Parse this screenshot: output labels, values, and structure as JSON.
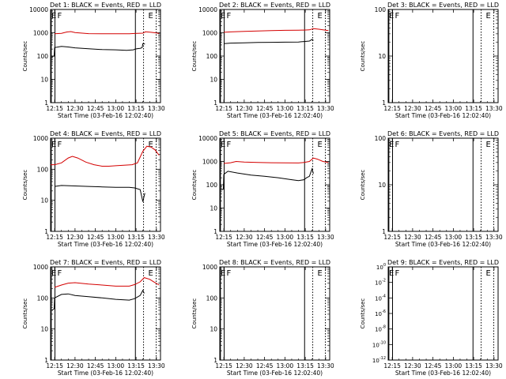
{
  "figure": {
    "xlabel": "Start Time (03-Feb-16 12:02:40)",
    "ylabel": "Counts/sec",
    "xticks": [
      "12:15",
      "12:30",
      "12:45",
      "13:00",
      "13:15",
      "13:30"
    ],
    "series_colors": {
      "events": "#000000",
      "lld": "#d40000"
    }
  },
  "chart_data": [
    {
      "type": "line",
      "title": "Det 1: BLACK = Events, RED = LLD",
      "xlabel": "Start Time (03-Feb-16 12:02:40)",
      "ylabel": "Counts/sec",
      "yscale": "log",
      "ylim": [
        1,
        10000
      ],
      "yticks": [
        "1",
        "10",
        "100",
        "1000",
        "10000"
      ],
      "xlim_minutes": [
        12,
        93
      ],
      "markers": [
        {
          "label": "E",
          "x_minutes": 12.5,
          "style": "solid"
        },
        {
          "label": "F",
          "x_minutes": 15.2,
          "style": "solid"
        },
        {
          "label": "",
          "x_minutes": 74.5,
          "style": "solid"
        },
        {
          "label": "",
          "x_minutes": 80.5,
          "style": "dotted"
        },
        {
          "label": "E",
          "x_minutes": 89.8,
          "style": "dotted"
        }
      ],
      "series": [
        {
          "key": "events",
          "points": [
            [
              13,
              95
            ],
            [
              14.6,
              100
            ],
            [
              15,
              230
            ],
            [
              20,
              260
            ],
            [
              25,
              245
            ],
            [
              30,
              225
            ],
            [
              40,
              205
            ],
            [
              50,
              190
            ],
            [
              60,
              185
            ],
            [
              68,
              175
            ],
            [
              73,
              185
            ],
            [
              74.4,
              200
            ],
            [
              76.5,
              210
            ],
            [
              78,
              215
            ],
            [
              79.5,
              230
            ],
            [
              80,
              340
            ],
            [
              81.5,
              330
            ]
          ]
        },
        {
          "key": "lld",
          "points": [
            [
              15,
              900
            ],
            [
              20,
              950
            ],
            [
              24,
              1080
            ],
            [
              27,
              1120
            ],
            [
              30,
              1020
            ],
            [
              40,
              920
            ],
            [
              50,
              900
            ],
            [
              60,
              900
            ],
            [
              70,
              900
            ],
            [
              74,
              930
            ],
            [
              76,
              940
            ],
            [
              80,
              960
            ],
            [
              82,
              1100
            ],
            [
              86,
              1050
            ],
            [
              90,
              980
            ],
            [
              92,
              930
            ]
          ]
        }
      ]
    },
    {
      "type": "line",
      "title": "Det 2: BLACK = Events, RED = LLD",
      "xlabel": "Start Time (03-Feb-16 12:02:40)",
      "ylabel": "Counts/sec",
      "yscale": "log",
      "ylim": [
        1,
        10000
      ],
      "yticks": [
        "1",
        "10",
        "100",
        "1000",
        "10000"
      ],
      "xlim_minutes": [
        12,
        93
      ],
      "markers": [
        {
          "label": "E",
          "x_minutes": 12.5,
          "style": "solid"
        },
        {
          "label": "F",
          "x_minutes": 15.2,
          "style": "solid"
        },
        {
          "label": "",
          "x_minutes": 74.5,
          "style": "solid"
        },
        {
          "label": "",
          "x_minutes": 80.5,
          "style": "dotted"
        },
        {
          "label": "E",
          "x_minutes": 89.8,
          "style": "dotted"
        }
      ],
      "series": [
        {
          "key": "events",
          "points": [
            [
              15,
              340
            ],
            [
              20,
              360
            ],
            [
              30,
              370
            ],
            [
              40,
              385
            ],
            [
              50,
              390
            ],
            [
              60,
              395
            ],
            [
              70,
              400
            ],
            [
              74,
              420
            ],
            [
              78,
              440
            ],
            [
              80,
              520
            ],
            [
              81,
              470
            ]
          ]
        },
        {
          "key": "lld",
          "points": [
            [
              15,
              1050
            ],
            [
              20,
              1090
            ],
            [
              30,
              1150
            ],
            [
              40,
              1200
            ],
            [
              50,
              1240
            ],
            [
              60,
              1270
            ],
            [
              70,
              1290
            ],
            [
              74,
              1300
            ],
            [
              78,
              1340
            ],
            [
              81,
              1500
            ],
            [
              85,
              1420
            ],
            [
              90,
              1280
            ],
            [
              92,
              1230
            ]
          ]
        }
      ]
    },
    {
      "type": "line",
      "title": "Det 3: BLACK = Events, RED = LLD",
      "xlabel": "Start Time (03-Feb-16 12:02:40)",
      "ylabel": "Counts/sec",
      "yscale": "log",
      "ylim": [
        1,
        100
      ],
      "yticks": [
        "1",
        "10",
        "100"
      ],
      "xlim_minutes": [
        12,
        93
      ],
      "markers": [
        {
          "label": "E",
          "x_minutes": 12.5,
          "style": "solid"
        },
        {
          "label": "F",
          "x_minutes": 15.2,
          "style": "solid"
        },
        {
          "label": "",
          "x_minutes": 74.5,
          "style": "solid"
        },
        {
          "label": "",
          "x_minutes": 80.5,
          "style": "dotted"
        },
        {
          "label": "E",
          "x_minutes": 89.8,
          "style": "dotted"
        }
      ],
      "series": []
    },
    {
      "type": "line",
      "title": "Det 4: BLACK = Events, RED = LLD",
      "xlabel": "Start Time (03-Feb-16 12:02:40)",
      "ylabel": "Counts/sec",
      "yscale": "log",
      "ylim": [
        1,
        1000
      ],
      "yticks": [
        "1",
        "10",
        "100",
        "1000"
      ],
      "xlim_minutes": [
        12,
        93
      ],
      "markers": [
        {
          "label": "E",
          "x_minutes": 12.5,
          "style": "solid"
        },
        {
          "label": "F",
          "x_minutes": 15.2,
          "style": "solid"
        },
        {
          "label": "",
          "x_minutes": 74.5,
          "style": "solid"
        },
        {
          "label": "",
          "x_minutes": 80.5,
          "style": "dotted"
        },
        {
          "label": "E",
          "x_minutes": 89.8,
          "style": "dotted"
        }
      ],
      "series": [
        {
          "key": "events",
          "points": [
            [
              15,
              28
            ],
            [
              20,
              30
            ],
            [
              30,
              29
            ],
            [
              40,
              28
            ],
            [
              50,
              27
            ],
            [
              60,
              26
            ],
            [
              70,
              26
            ],
            [
              74,
              25
            ],
            [
              78,
              22
            ],
            [
              80,
              9
            ],
            [
              81,
              14
            ],
            [
              81.5,
              17
            ]
          ]
        },
        {
          "key": "lld",
          "points": [
            [
              12,
              140
            ],
            [
              15,
              140
            ],
            [
              20,
              160
            ],
            [
              25,
              230
            ],
            [
              28,
              260
            ],
            [
              32,
              230
            ],
            [
              38,
              170
            ],
            [
              44,
              140
            ],
            [
              50,
              125
            ],
            [
              55,
              125
            ],
            [
              60,
              130
            ],
            [
              66,
              135
            ],
            [
              72,
              140
            ],
            [
              76,
              160
            ],
            [
              80,
              380
            ],
            [
              83,
              550
            ],
            [
              86,
              520
            ],
            [
              89,
              420
            ],
            [
              92,
              280
            ]
          ]
        }
      ]
    },
    {
      "type": "line",
      "title": "Det 5: BLACK = Events, RED = LLD",
      "xlabel": "Start Time (03-Feb-16 12:02:40)",
      "ylabel": "Counts/sec",
      "yscale": "log",
      "ylim": [
        1,
        10000
      ],
      "yticks": [
        "1",
        "10",
        "100",
        "1000",
        "10000"
      ],
      "xlim_minutes": [
        12,
        93
      ],
      "markers": [
        {
          "label": "E",
          "x_minutes": 12.5,
          "style": "solid"
        },
        {
          "label": "F",
          "x_minutes": 15.2,
          "style": "solid"
        },
        {
          "label": "",
          "x_minutes": 74.5,
          "style": "solid"
        },
        {
          "label": "",
          "x_minutes": 80.5,
          "style": "dotted"
        },
        {
          "label": "E",
          "x_minutes": 89.8,
          "style": "dotted"
        }
      ],
      "series": [
        {
          "key": "events",
          "points": [
            [
              13,
              60
            ],
            [
              14.6,
              65
            ],
            [
              15,
              280
            ],
            [
              18,
              380
            ],
            [
              25,
              320
            ],
            [
              35,
              260
            ],
            [
              45,
              230
            ],
            [
              55,
              200
            ],
            [
              65,
              165
            ],
            [
              70,
              150
            ],
            [
              74,
              165
            ],
            [
              76,
              200
            ],
            [
              78,
              230
            ],
            [
              80,
              480
            ],
            [
              81,
              300
            ]
          ]
        },
        {
          "key": "lld",
          "points": [
            [
              15,
              820
            ],
            [
              20,
              880
            ],
            [
              24,
              1000
            ],
            [
              30,
              950
            ],
            [
              40,
              900
            ],
            [
              50,
              880
            ],
            [
              60,
              870
            ],
            [
              70,
              860
            ],
            [
              74,
              900
            ],
            [
              78,
              1000
            ],
            [
              81,
              1400
            ],
            [
              84,
              1250
            ],
            [
              88,
              1000
            ],
            [
              92,
              900
            ]
          ]
        }
      ]
    },
    {
      "type": "line",
      "title": "Det 6: BLACK = Events, RED = LLD",
      "xlabel": "Start Time (03-Feb-16 12:02:40)",
      "ylabel": "Counts/sec",
      "yscale": "log",
      "ylim": [
        1,
        100
      ],
      "yticks": [
        "1",
        "10",
        "100"
      ],
      "xlim_minutes": [
        12,
        93
      ],
      "markers": [
        {
          "label": "E",
          "x_minutes": 12.5,
          "style": "solid"
        },
        {
          "label": "F",
          "x_minutes": 15.2,
          "style": "solid"
        },
        {
          "label": "",
          "x_minutes": 74.5,
          "style": "solid"
        },
        {
          "label": "",
          "x_minutes": 80.5,
          "style": "dotted"
        },
        {
          "label": "E",
          "x_minutes": 89.8,
          "style": "dotted"
        }
      ],
      "series": []
    },
    {
      "type": "line",
      "title": "Det 7: BLACK = Events, RED = LLD",
      "xlabel": "Start Time (03-Feb-16 12:02:40)",
      "ylabel": "Counts/sec",
      "yscale": "log",
      "ylim": [
        1,
        1000
      ],
      "yticks": [
        "1",
        "10",
        "100",
        "1000"
      ],
      "xlim_minutes": [
        12,
        93
      ],
      "markers": [
        {
          "label": "E",
          "x_minutes": 12.5,
          "style": "solid"
        },
        {
          "label": "F",
          "x_minutes": 15.2,
          "style": "solid"
        },
        {
          "label": "",
          "x_minutes": 74.5,
          "style": "solid"
        },
        {
          "label": "",
          "x_minutes": 80.5,
          "style": "dotted"
        },
        {
          "label": "E",
          "x_minutes": 89.8,
          "style": "dotted"
        }
      ],
      "series": [
        {
          "key": "events",
          "points": [
            [
              13,
              40
            ],
            [
              14.6,
              45
            ],
            [
              15,
              100
            ],
            [
              20,
              130
            ],
            [
              25,
              135
            ],
            [
              30,
              120
            ],
            [
              40,
              110
            ],
            [
              50,
              100
            ],
            [
              60,
              90
            ],
            [
              70,
              85
            ],
            [
              74,
              95
            ],
            [
              78,
              120
            ],
            [
              80,
              175
            ],
            [
              81,
              140
            ]
          ]
        },
        {
          "key": "lld",
          "points": [
            [
              15,
              220
            ],
            [
              20,
              260
            ],
            [
              25,
              300
            ],
            [
              30,
              310
            ],
            [
              40,
              280
            ],
            [
              50,
              260
            ],
            [
              60,
              240
            ],
            [
              70,
              240
            ],
            [
              74,
              270
            ],
            [
              78,
              330
            ],
            [
              81,
              450
            ],
            [
              85,
              400
            ],
            [
              88,
              330
            ],
            [
              92,
              260
            ]
          ]
        }
      ]
    },
    {
      "type": "line",
      "title": "Det 8: BLACK = Events, RED = LLD",
      "xlabel": "Start Time (03-Feb-16 12:02:40)",
      "ylabel": "Counts/sec",
      "yscale": "log",
      "ylim": [
        1,
        1000
      ],
      "yticks": [
        "1",
        "10",
        "100",
        "1000"
      ],
      "xlim_minutes": [
        12,
        93
      ],
      "markers": [
        {
          "label": "E",
          "x_minutes": 12.5,
          "style": "solid"
        },
        {
          "label": "F",
          "x_minutes": 15.2,
          "style": "solid"
        },
        {
          "label": "",
          "x_minutes": 74.5,
          "style": "solid"
        },
        {
          "label": "",
          "x_minutes": 80.5,
          "style": "dotted"
        },
        {
          "label": "E",
          "x_minutes": 89.8,
          "style": "dotted"
        }
      ],
      "series": []
    },
    {
      "type": "line",
      "title": "Det 9: BLACK = Events, RED = LLD",
      "xlabel": "Start Time (03-Feb-16 12:02:40)",
      "ylabel": "Counts/sec",
      "yscale": "log",
      "ylim": [
        1e-12,
        1
      ],
      "yticks_exponents": [
        -12,
        -10,
        -8,
        -6,
        -4,
        -2,
        0
      ],
      "xlim_minutes": [
        12,
        93
      ],
      "markers": [
        {
          "label": "E",
          "x_minutes": 12.5,
          "style": "solid"
        },
        {
          "label": "F",
          "x_minutes": 15.2,
          "style": "solid"
        },
        {
          "label": "",
          "x_minutes": 74.5,
          "style": "solid"
        },
        {
          "label": "",
          "x_minutes": 80.5,
          "style": "dotted"
        },
        {
          "label": "E",
          "x_minutes": 89.8,
          "style": "dotted"
        }
      ],
      "series": []
    }
  ]
}
